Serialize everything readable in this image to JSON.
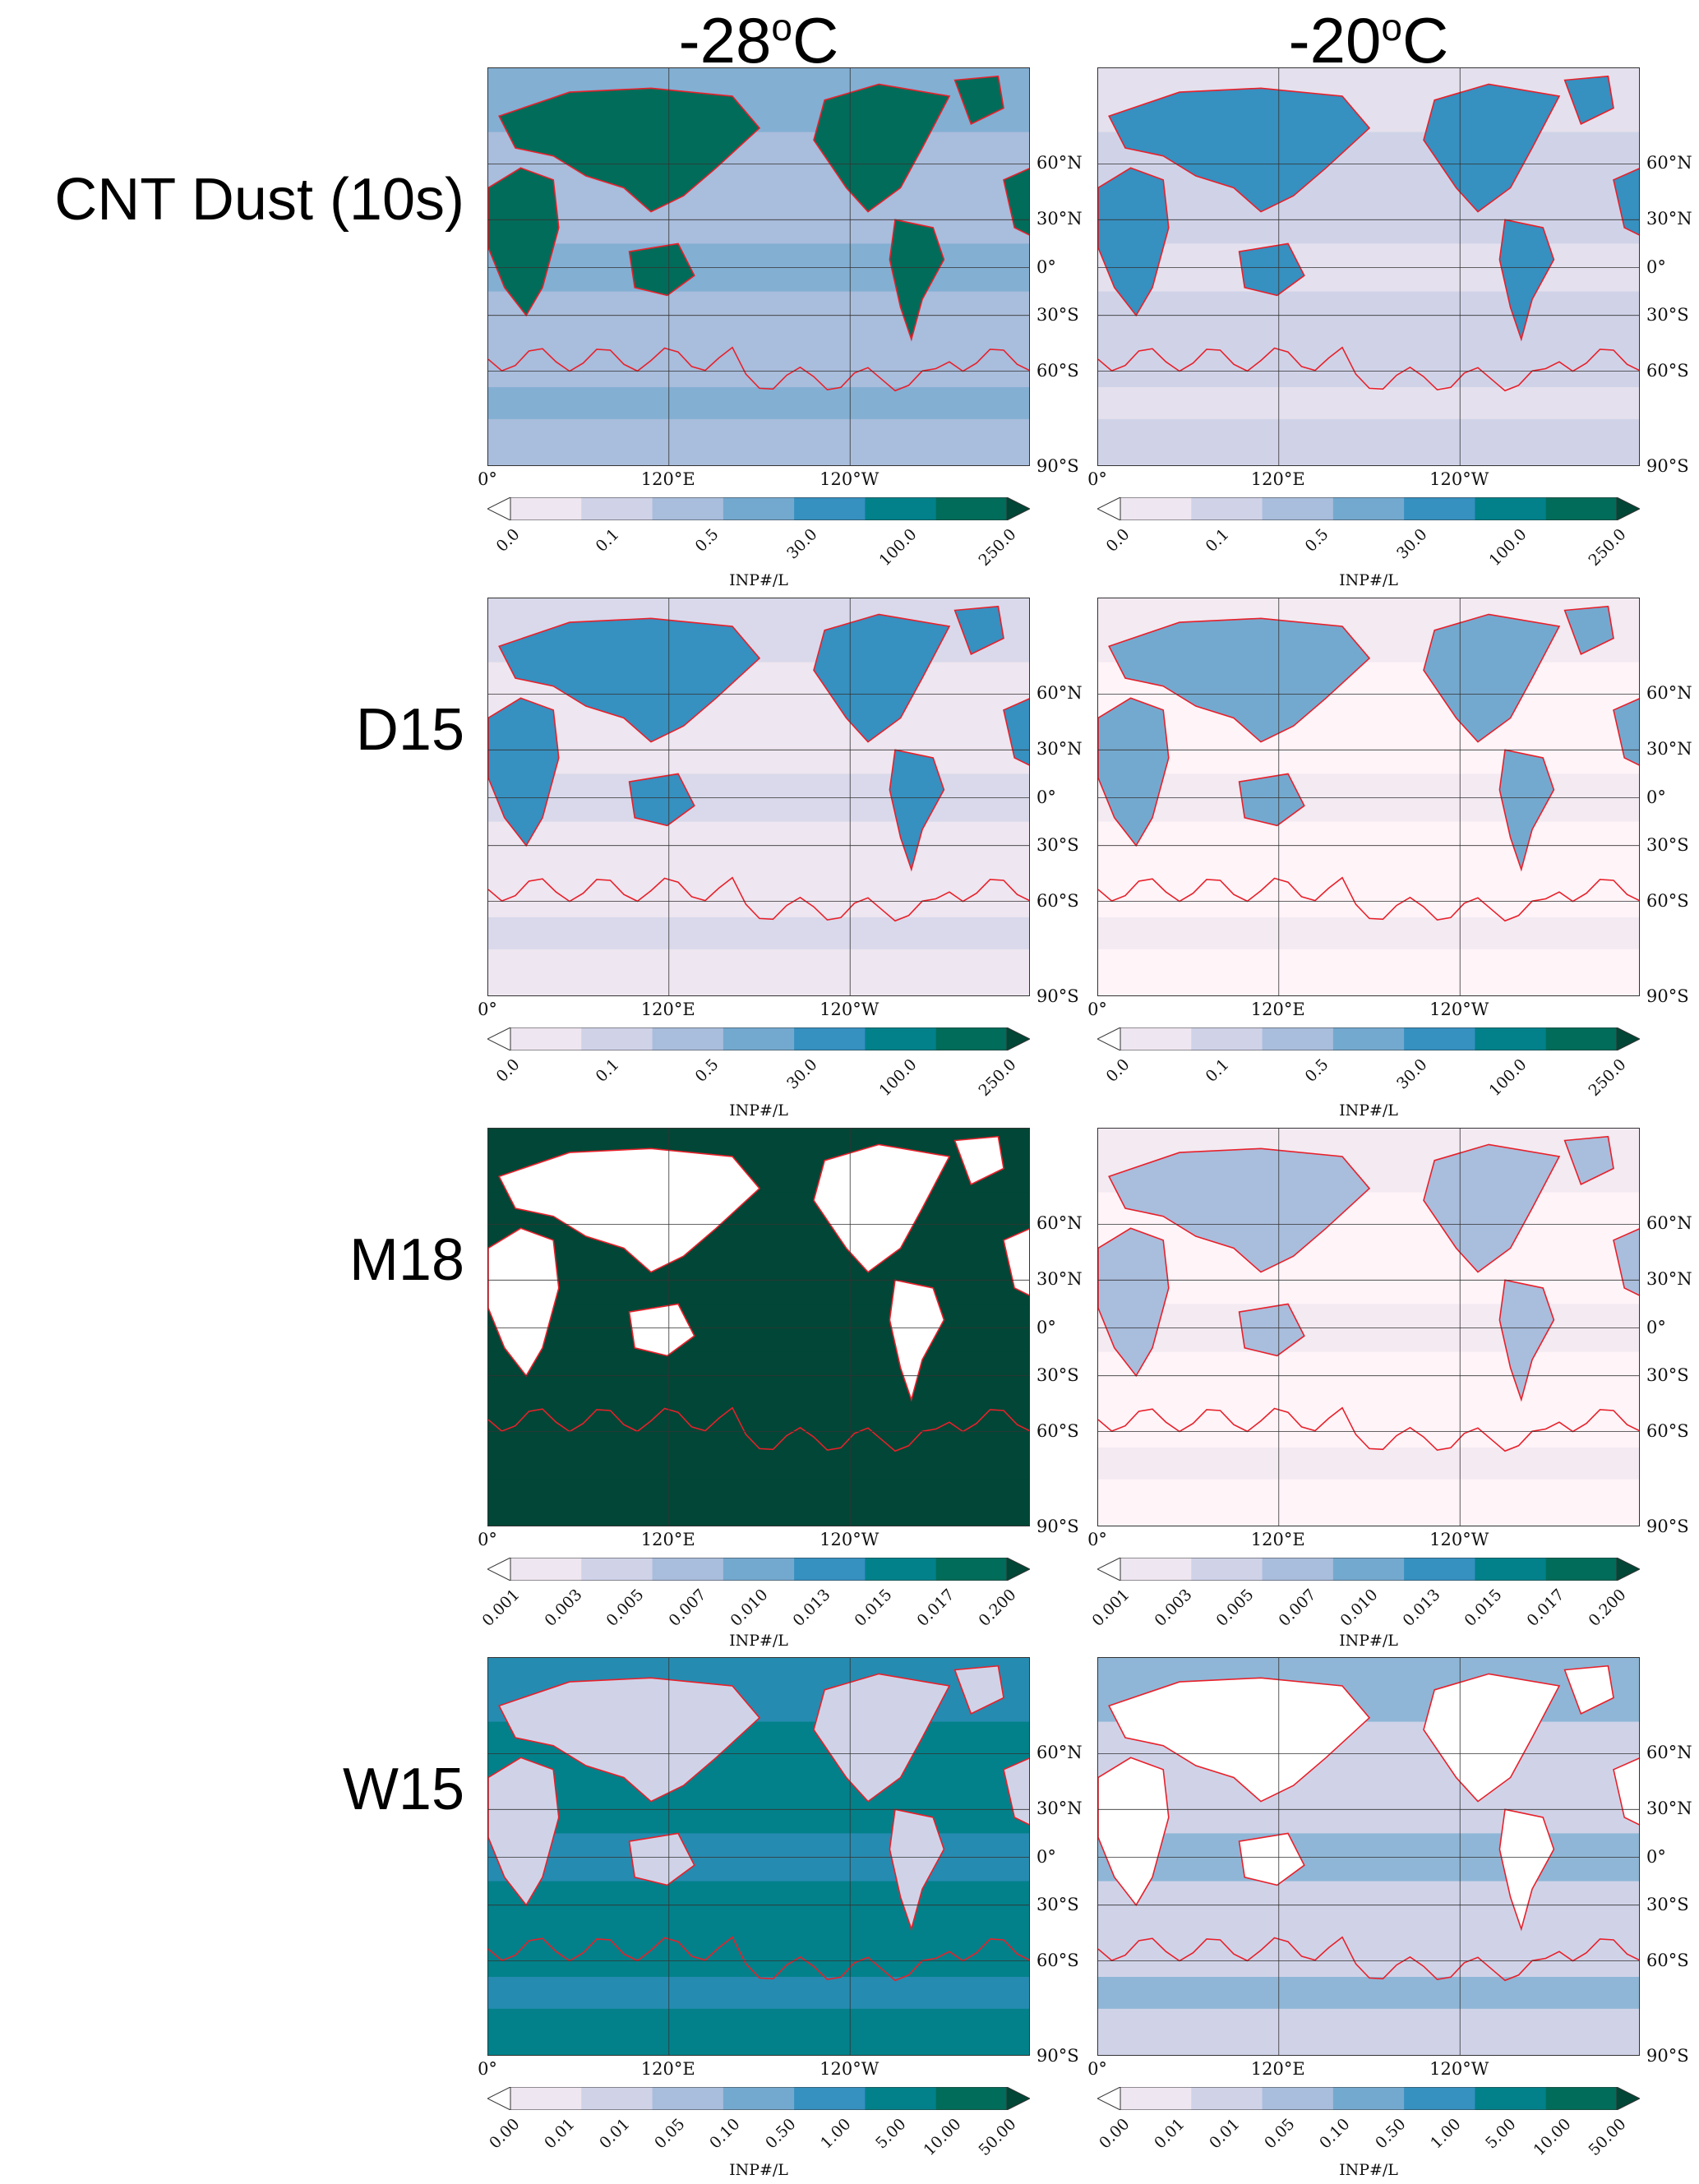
{
  "columns": [
    {
      "title": "-28",
      "sup": "o",
      "unit": "C"
    },
    {
      "title": "-20",
      "sup": "o",
      "unit": "C"
    }
  ],
  "rows": [
    {
      "label": "CNT Dust (10s)",
      "ticks": [
        "0.0",
        "0.1",
        "0.5",
        "30.0",
        "100.0",
        "250.0"
      ],
      "colors": [
        "#ffffff",
        "#eee6f0",
        "#d0d3e8",
        "#a9bddc",
        "#74a9cf",
        "#3690c0",
        "#02818a",
        "#016c59",
        "#014636"
      ],
      "panels": [
        {
          "bg": "#a9bddc",
          "land": "#016c59",
          "ocean2": "#74a9cf"
        },
        {
          "bg": "#d0d3e8",
          "land": "#3690c0",
          "ocean2": "#eee6f0"
        }
      ]
    },
    {
      "label": "D15",
      "ticks": [
        "0.0",
        "0.1",
        "0.5",
        "30.0",
        "100.0",
        "250.0"
      ],
      "colors": [
        "#ffffff",
        "#eee6f0",
        "#d0d3e8",
        "#a9bddc",
        "#74a9cf",
        "#3690c0",
        "#02818a",
        "#016c59",
        "#014636"
      ],
      "panels": [
        {
          "bg": "#eee6f0",
          "land": "#3690c0",
          "ocean2": "#d0d3e8"
        },
        {
          "bg": "#fff4f8",
          "land": "#74a9cf",
          "ocean2": "#eee6f0"
        }
      ]
    },
    {
      "label": "M18",
      "ticks": [
        "0.001",
        "0.003",
        "0.005",
        "0.007",
        "0.010",
        "0.013",
        "0.015",
        "0.017",
        "0.200"
      ],
      "colors": [
        "#ffffff",
        "#eee6f0",
        "#d0d3e8",
        "#a9bddc",
        "#74a9cf",
        "#3690c0",
        "#02818a",
        "#016c59",
        "#014636"
      ],
      "panels": [
        {
          "bg": "#014636",
          "land": "#ffffff",
          "ocean2": "#014636"
        },
        {
          "bg": "#fff4f8",
          "land": "#a9bddc",
          "ocean2": "#eee6f0"
        }
      ]
    },
    {
      "label": "W15",
      "ticks": [
        "0.00",
        "0.01",
        "0.01",
        "0.05",
        "0.10",
        "0.50",
        "1.00",
        "5.00",
        "10.00",
        "50.00"
      ],
      "colors": [
        "#ffffff",
        "#eee6f0",
        "#d0d3e8",
        "#a9bddc",
        "#74a9cf",
        "#3690c0",
        "#02818a",
        "#016c59",
        "#014636"
      ],
      "panels": [
        {
          "bg": "#02818a",
          "land": "#d0d3e8",
          "ocean2": "#3690c0"
        },
        {
          "bg": "#d0d3e8",
          "land": "#ffffff",
          "ocean2": "#74a9cf"
        }
      ]
    }
  ],
  "colorbar_label": "INP#/L",
  "lat_labels": [
    "60°N",
    "30°N",
    "0°",
    "30°S",
    "60°S",
    "90°S"
  ],
  "lon_labels": [
    "0°",
    "120°E",
    "120°W"
  ],
  "colors": {
    "coastline": "#e8202a",
    "grid": "#333333"
  }
}
